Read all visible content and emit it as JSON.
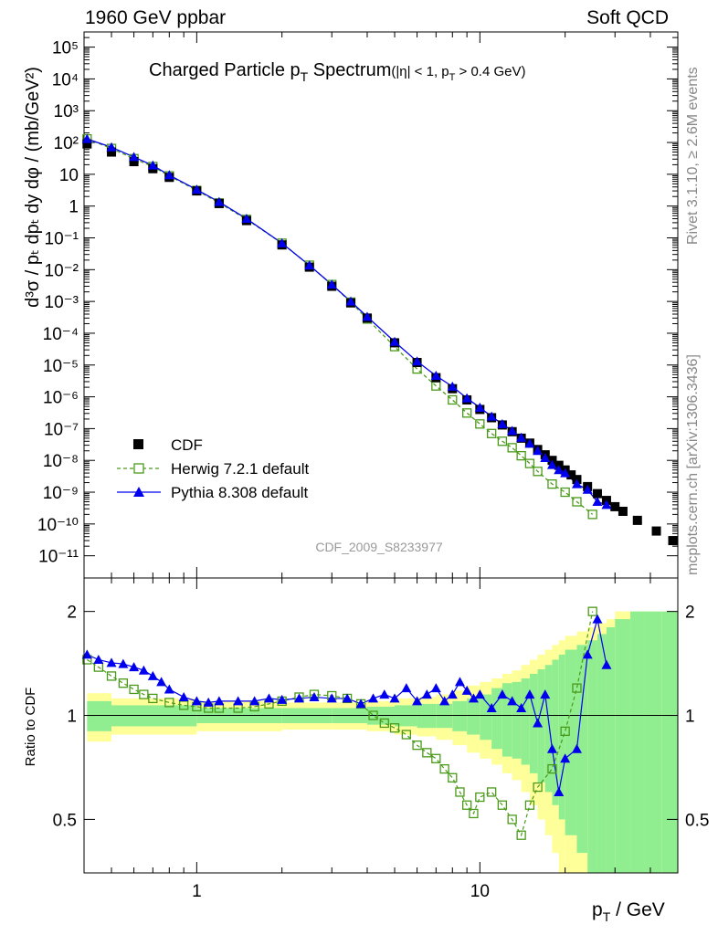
{
  "header": {
    "left": "1960 GeV ppbar",
    "right": "Soft QCD"
  },
  "side_labels": {
    "rivet": "Rivet 3.1.10, ≥ 2.6M events",
    "mcplots": "mcplots.cern.ch [arXiv:1306.3436]"
  },
  "colors": {
    "cdf": "#000000",
    "herwig": "#4a9a1a",
    "pythia": "#0000ee",
    "band_inner": "#90ee90",
    "band_outer": "#ffff99"
  },
  "chart_data": [
    {
      "type": "scatter",
      "panel": "main",
      "title": "Charged Particle p",
      "title_sub": "T",
      "title_tail": " Spectrum",
      "title_cut": "(|η| < 1, p",
      "title_cut_sub": "T",
      "title_cut_tail": " > 0.4 GeV)",
      "watermark": "CDF_2009_S8233977",
      "ylabel": "d³σ / pₜ dpₜ dy dφ / (mb/GeV²)",
      "xscale": "log",
      "yscale": "log",
      "xlim": [
        0.4,
        50
      ],
      "ylim": [
        2e-12,
        300000.0
      ],
      "yticks": [
        "10⁵",
        "10⁴",
        "10³",
        "10²",
        "10",
        "1",
        "10⁻¹",
        "10⁻²",
        "10⁻³",
        "10⁻⁴",
        "10⁻⁵",
        "10⁻⁶",
        "10⁻⁷",
        "10⁻⁸",
        "10⁻⁹",
        "10⁻¹⁰",
        "10⁻¹¹"
      ],
      "ytick_values": [
        100000.0,
        10000.0,
        1000.0,
        100.0,
        10,
        1,
        0.1,
        0.01,
        0.001,
        0.0001,
        1e-05,
        1e-06,
        1e-07,
        1e-08,
        1e-09,
        1e-10,
        1e-11
      ],
      "legend": {
        "placement": "bottom-left",
        "entries": [
          "CDF",
          "Herwig 7.2.1 default",
          "Pythia 8.308 default"
        ]
      },
      "series": [
        {
          "name": "CDF",
          "x": [
            0.41,
            0.5,
            0.6,
            0.7,
            0.8,
            1.0,
            1.2,
            1.5,
            2.0,
            2.5,
            3.0,
            3.5,
            4.0,
            5.0,
            6.0,
            7.0,
            8.0,
            9.0,
            10.0,
            11.0,
            12.0,
            13.0,
            14.0,
            15.0,
            16.0,
            17.0,
            18.0,
            19.0,
            20.0,
            21.0,
            22.0,
            24.0,
            26.0,
            28.0,
            30.0,
            32.0,
            36.0,
            42.0,
            48.0
          ],
          "y": [
            90,
            50,
            25,
            15,
            8,
            3,
            1.2,
            0.35,
            0.06,
            0.012,
            0.003,
            0.0009,
            0.0003,
            5e-05,
            1.2e-05,
            4e-06,
            1.8e-06,
            8e-07,
            4e-07,
            2.2e-07,
            1.3e-07,
            8e-08,
            5e-08,
            3.5e-08,
            2.2e-08,
            1.5e-08,
            1e-08,
            7e-09,
            5e-09,
            3.5e-09,
            2.5e-09,
            1.5e-09,
            9e-10,
            5.5e-10,
            3.5e-10,
            2.5e-10,
            1.3e-10,
            6e-11,
            3e-11
          ]
        },
        {
          "name": "Herwig 7.2.1 default",
          "x": [
            0.41,
            0.5,
            0.6,
            0.7,
            0.8,
            1.0,
            1.2,
            1.5,
            2.0,
            2.5,
            3.0,
            3.5,
            4.0,
            5.0,
            6.0,
            7.0,
            8.0,
            9.0,
            10.0,
            11.0,
            12.0,
            13.0,
            14.0,
            15.0,
            16.0,
            18.0,
            20.0,
            22.0,
            25.0
          ],
          "y": [
            130,
            65,
            31,
            17.5,
            8.9,
            3.1,
            1.26,
            0.38,
            0.068,
            0.0138,
            0.0034,
            0.00095,
            0.00028,
            3.8e-05,
            7.5e-06,
            2.2e-06,
            8e-07,
            3.1e-07,
            1.4e-07,
            7e-08,
            4e-08,
            2.5e-08,
            1.4e-08,
            8e-09,
            4.5e-09,
            1.8e-09,
            1e-09,
            5e-10,
            2e-10
          ]
        },
        {
          "name": "Pythia 8.308 default",
          "x": [
            0.41,
            0.5,
            0.6,
            0.7,
            0.8,
            1.0,
            1.2,
            1.5,
            2.0,
            2.5,
            3.0,
            3.5,
            4.0,
            5.0,
            6.0,
            7.0,
            8.0,
            9.0,
            10.0,
            11.0,
            12.0,
            13.0,
            14.0,
            15.0,
            16.0,
            17.0,
            18.0,
            19.0,
            20.0,
            22.0,
            24.0,
            26.0,
            28.0
          ],
          "y": [
            130,
            71,
            35,
            19,
            9.4,
            3.3,
            1.35,
            0.4,
            0.068,
            0.0136,
            0.0034,
            0.001,
            0.00033,
            5.4e-05,
            1.3e-05,
            4.6e-06,
            2.1e-06,
            9e-07,
            4.6e-07,
            2.4e-07,
            1.4e-07,
            8.5e-08,
            5.2e-08,
            3.4e-08,
            2e-08,
            1.2e-08,
            7.2e-09,
            5e-09,
            4e-09,
            1.8e-09,
            1.2e-09,
            5e-10,
            4e-10
          ]
        }
      ]
    },
    {
      "type": "scatter",
      "panel": "ratio",
      "ylabel": "Ratio to CDF",
      "xlabel": "p",
      "xlabel_sub": "T",
      "xlabel_tail": " / GeV",
      "xscale": "log",
      "yscale": "log",
      "xlim": [
        0.4,
        50
      ],
      "ylim": [
        0.35,
        2.5
      ],
      "yticks": [
        "2",
        "1",
        "0.5"
      ],
      "ytick_values": [
        2,
        1,
        0.5
      ],
      "xticks": [
        "1",
        "10"
      ],
      "xtick_values": [
        1,
        10
      ],
      "band": {
        "x": [
          0.41,
          0.5,
          1,
          2,
          3,
          4,
          5,
          6,
          7,
          8,
          9,
          10,
          11,
          12,
          13,
          14,
          15,
          16,
          17,
          18,
          19,
          20,
          22,
          24,
          26,
          28,
          30,
          34,
          38,
          44,
          50
        ],
        "inner": [
          0.1,
          0.07,
          0.05,
          0.05,
          0.05,
          0.06,
          0.07,
          0.08,
          0.08,
          0.1,
          0.12,
          0.15,
          0.2,
          0.24,
          0.25,
          0.28,
          0.32,
          0.36,
          0.4,
          0.45,
          0.5,
          0.55,
          0.6,
          0.65,
          0.72,
          0.8,
          0.9,
          1,
          1,
          1,
          1
        ],
        "outer": [
          0.16,
          0.12,
          0.1,
          0.09,
          0.09,
          0.1,
          0.12,
          0.13,
          0.15,
          0.18,
          0.22,
          0.25,
          0.28,
          0.32,
          0.35,
          0.4,
          0.45,
          0.5,
          0.55,
          0.6,
          0.65,
          0.7,
          0.75,
          0.8,
          0.85,
          0.9,
          1,
          1,
          1,
          1,
          1
        ]
      },
      "series": [
        {
          "name": "Herwig 7.2.1 default",
          "x": [
            0.41,
            0.45,
            0.5,
            0.55,
            0.6,
            0.65,
            0.7,
            0.8,
            0.9,
            1.0,
            1.1,
            1.2,
            1.4,
            1.6,
            1.8,
            2.0,
            2.3,
            2.6,
            3.0,
            3.4,
            3.8,
            4.2,
            4.6,
            5.0,
            5.5,
            6.0,
            6.5,
            7.0,
            7.5,
            8.0,
            8.5,
            9.0,
            9.5,
            10.0,
            11.0,
            12.0,
            13.0,
            14.0,
            15.0,
            16.0,
            18.0,
            20.0,
            22.0,
            25.0
          ],
          "y": [
            1.45,
            1.38,
            1.3,
            1.24,
            1.19,
            1.15,
            1.12,
            1.09,
            1.07,
            1.06,
            1.05,
            1.05,
            1.05,
            1.06,
            1.08,
            1.1,
            1.13,
            1.15,
            1.14,
            1.12,
            1.08,
            1.0,
            0.95,
            0.92,
            0.88,
            0.82,
            0.78,
            0.75,
            0.7,
            0.66,
            0.6,
            0.55,
            0.52,
            0.58,
            0.6,
            0.55,
            0.5,
            0.45,
            0.55,
            0.62,
            0.7,
            0.9,
            1.2,
            2.0
          ]
        },
        {
          "name": "Pythia 8.308 default",
          "x": [
            0.41,
            0.45,
            0.5,
            0.55,
            0.6,
            0.65,
            0.7,
            0.75,
            0.8,
            0.9,
            1.0,
            1.1,
            1.2,
            1.4,
            1.6,
            1.8,
            2.0,
            2.3,
            2.6,
            3.0,
            3.4,
            3.8,
            4.2,
            4.6,
            5.0,
            5.5,
            6.0,
            6.5,
            7.0,
            7.5,
            8.0,
            8.5,
            9.0,
            9.5,
            10.0,
            11.0,
            12.0,
            13.0,
            14.0,
            15.0,
            16.0,
            17.0,
            18.0,
            19.0,
            20.0,
            22.0,
            24.0,
            26.0,
            28.0
          ],
          "y": [
            1.5,
            1.45,
            1.42,
            1.41,
            1.38,
            1.35,
            1.3,
            1.25,
            1.19,
            1.13,
            1.1,
            1.09,
            1.1,
            1.1,
            1.1,
            1.12,
            1.11,
            1.12,
            1.13,
            1.12,
            1.12,
            1.08,
            1.12,
            1.15,
            1.12,
            1.2,
            1.1,
            1.15,
            1.2,
            1.1,
            1.15,
            1.25,
            1.18,
            1.12,
            1.15,
            1.05,
            1.15,
            1.1,
            1.05,
            1.15,
            0.95,
            1.15,
            0.8,
            0.6,
            0.75,
            0.8,
            1.5,
            1.9,
            1.4
          ]
        }
      ]
    }
  ]
}
